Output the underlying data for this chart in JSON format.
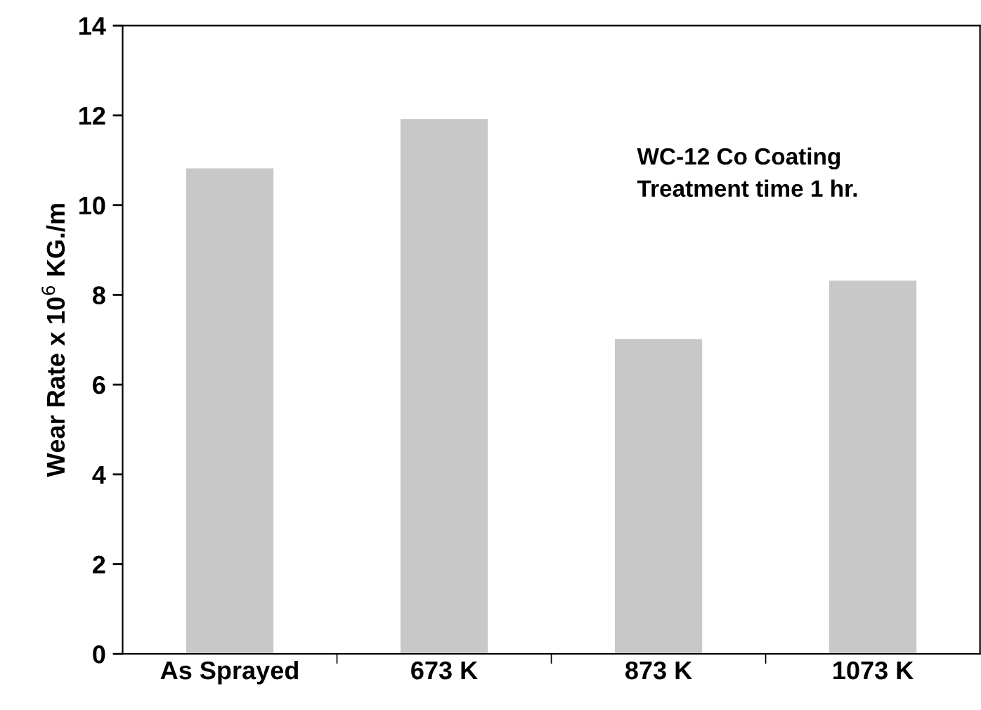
{
  "chart_data": {
    "type": "bar",
    "ylabel": "Wear Rate x 10$^{6}$ KG./m",
    "categories": [
      "As Sprayed",
      "673 K",
      "873 K",
      "1073 K"
    ],
    "values": [
      10.8,
      11.9,
      7.0,
      8.3
    ],
    "color": "#c8c8c8",
    "ylim": [
      0,
      14
    ],
    "yticks": [
      0,
      2,
      4,
      6,
      8,
      10,
      12,
      14
    ],
    "grid": false,
    "annotations": [
      "WC-12 Co Coating\nTreatment time 1 hr."
    ]
  }
}
